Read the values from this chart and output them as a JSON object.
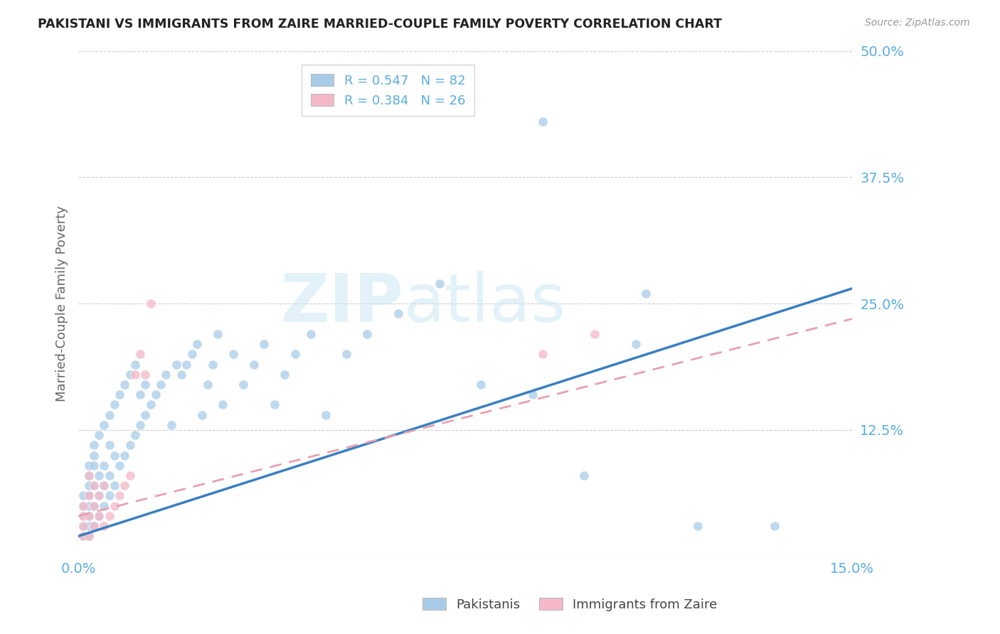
{
  "title": "PAKISTANI VS IMMIGRANTS FROM ZAIRE MARRIED-COUPLE FAMILY POVERTY CORRELATION CHART",
  "source": "Source: ZipAtlas.com",
  "ylabel_label": "Married-Couple Family Poverty",
  "xlim": [
    0.0,
    0.15
  ],
  "ylim": [
    0.0,
    0.5
  ],
  "color_blue": "#a8cce8",
  "color_pink": "#f4b8c8",
  "color_blue_line": "#3a7fc1",
  "color_pink_line": "#e8a0b0",
  "watermark_zip": "ZIP",
  "watermark_atlas": "atlas",
  "legend_entries": [
    {
      "r": "0.547",
      "n": "82",
      "color": "#a8cce8"
    },
    {
      "r": "0.384",
      "n": "26",
      "color": "#f4b8c8"
    }
  ],
  "pakistani_x": [
    0.001,
    0.001,
    0.001,
    0.001,
    0.001,
    0.002,
    0.002,
    0.002,
    0.002,
    0.002,
    0.002,
    0.002,
    0.002,
    0.003,
    0.003,
    0.003,
    0.003,
    0.003,
    0.003,
    0.004,
    0.004,
    0.004,
    0.004,
    0.005,
    0.005,
    0.005,
    0.005,
    0.006,
    0.006,
    0.006,
    0.006,
    0.007,
    0.007,
    0.007,
    0.008,
    0.008,
    0.009,
    0.009,
    0.01,
    0.01,
    0.011,
    0.011,
    0.012,
    0.012,
    0.013,
    0.013,
    0.014,
    0.015,
    0.016,
    0.017,
    0.018,
    0.019,
    0.02,
    0.021,
    0.022,
    0.023,
    0.024,
    0.025,
    0.026,
    0.027,
    0.028,
    0.03,
    0.032,
    0.034,
    0.036,
    0.038,
    0.04,
    0.042,
    0.045,
    0.048,
    0.052,
    0.056,
    0.062,
    0.07,
    0.078,
    0.088,
    0.098,
    0.108,
    0.12,
    0.135,
    0.09,
    0.11
  ],
  "pakistani_y": [
    0.02,
    0.03,
    0.04,
    0.05,
    0.06,
    0.02,
    0.03,
    0.04,
    0.05,
    0.06,
    0.07,
    0.08,
    0.09,
    0.03,
    0.05,
    0.07,
    0.09,
    0.1,
    0.11,
    0.04,
    0.06,
    0.08,
    0.12,
    0.05,
    0.07,
    0.09,
    0.13,
    0.06,
    0.08,
    0.11,
    0.14,
    0.07,
    0.1,
    0.15,
    0.09,
    0.16,
    0.1,
    0.17,
    0.11,
    0.18,
    0.12,
    0.19,
    0.13,
    0.16,
    0.14,
    0.17,
    0.15,
    0.16,
    0.17,
    0.18,
    0.13,
    0.19,
    0.18,
    0.19,
    0.2,
    0.21,
    0.14,
    0.17,
    0.19,
    0.22,
    0.15,
    0.2,
    0.17,
    0.19,
    0.21,
    0.15,
    0.18,
    0.2,
    0.22,
    0.14,
    0.2,
    0.22,
    0.24,
    0.27,
    0.17,
    0.16,
    0.08,
    0.21,
    0.03,
    0.03,
    0.43,
    0.26
  ],
  "zaire_x": [
    0.001,
    0.001,
    0.001,
    0.001,
    0.002,
    0.002,
    0.002,
    0.002,
    0.003,
    0.003,
    0.003,
    0.004,
    0.004,
    0.005,
    0.005,
    0.006,
    0.007,
    0.008,
    0.009,
    0.01,
    0.011,
    0.012,
    0.013,
    0.014,
    0.09,
    0.1
  ],
  "zaire_y": [
    0.02,
    0.03,
    0.04,
    0.05,
    0.02,
    0.04,
    0.06,
    0.08,
    0.03,
    0.05,
    0.07,
    0.04,
    0.06,
    0.03,
    0.07,
    0.04,
    0.05,
    0.06,
    0.07,
    0.08,
    0.18,
    0.2,
    0.18,
    0.25,
    0.2,
    0.22
  ],
  "blue_line_x": [
    0.0,
    0.15
  ],
  "blue_line_y": [
    0.02,
    0.265
  ],
  "pink_line_x": [
    0.0,
    0.15
  ],
  "pink_line_y": [
    0.04,
    0.235
  ]
}
